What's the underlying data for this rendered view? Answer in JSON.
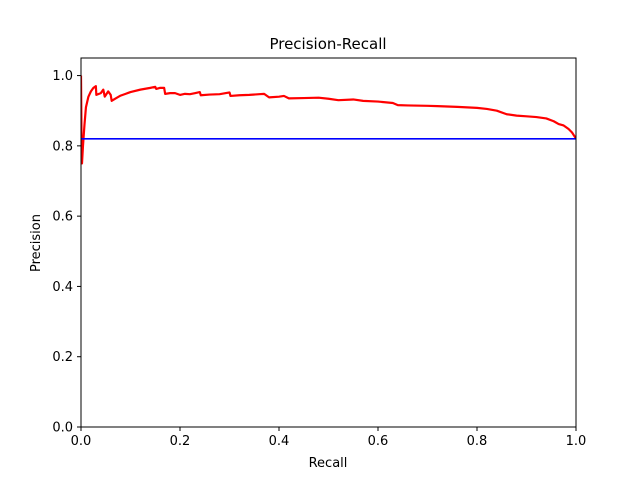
{
  "chart_data": {
    "type": "line",
    "title": "Precision-Recall",
    "xlabel": "Recall",
    "ylabel": "Precision",
    "xlim": [
      0.0,
      1.0
    ],
    "ylim": [
      0.0,
      1.05
    ],
    "x_ticks": [
      "0.0",
      "0.2",
      "0.4",
      "0.6",
      "0.8",
      "1.0"
    ],
    "y_ticks": [
      "0.0",
      "0.2",
      "0.4",
      "0.6",
      "0.8",
      "1.0"
    ],
    "grid": false,
    "legend": "none",
    "series": [
      {
        "color": "#ff0000",
        "points": [
          [
            0.0,
            1.0
          ],
          [
            0.001,
            0.83
          ],
          [
            0.002,
            0.75
          ],
          [
            0.004,
            0.8
          ],
          [
            0.007,
            0.86
          ],
          [
            0.01,
            0.91
          ],
          [
            0.015,
            0.94
          ],
          [
            0.02,
            0.955
          ],
          [
            0.025,
            0.965
          ],
          [
            0.03,
            0.97
          ],
          [
            0.031,
            0.945
          ],
          [
            0.04,
            0.95
          ],
          [
            0.045,
            0.96
          ],
          [
            0.048,
            0.94
          ],
          [
            0.055,
            0.955
          ],
          [
            0.06,
            0.945
          ],
          [
            0.062,
            0.928
          ],
          [
            0.07,
            0.935
          ],
          [
            0.08,
            0.943
          ],
          [
            0.09,
            0.948
          ],
          [
            0.1,
            0.953
          ],
          [
            0.12,
            0.96
          ],
          [
            0.14,
            0.965
          ],
          [
            0.15,
            0.968
          ],
          [
            0.152,
            0.962
          ],
          [
            0.16,
            0.965
          ],
          [
            0.168,
            0.965
          ],
          [
            0.17,
            0.948
          ],
          [
            0.18,
            0.95
          ],
          [
            0.19,
            0.95
          ],
          [
            0.2,
            0.945
          ],
          [
            0.21,
            0.948
          ],
          [
            0.22,
            0.947
          ],
          [
            0.23,
            0.95
          ],
          [
            0.24,
            0.953
          ],
          [
            0.242,
            0.944
          ],
          [
            0.26,
            0.946
          ],
          [
            0.28,
            0.947
          ],
          [
            0.3,
            0.952
          ],
          [
            0.302,
            0.942
          ],
          [
            0.32,
            0.944
          ],
          [
            0.34,
            0.945
          ],
          [
            0.36,
            0.947
          ],
          [
            0.37,
            0.948
          ],
          [
            0.38,
            0.938
          ],
          [
            0.4,
            0.94
          ],
          [
            0.41,
            0.942
          ],
          [
            0.42,
            0.935
          ],
          [
            0.45,
            0.936
          ],
          [
            0.48,
            0.937
          ],
          [
            0.5,
            0.934
          ],
          [
            0.52,
            0.93
          ],
          [
            0.55,
            0.932
          ],
          [
            0.57,
            0.928
          ],
          [
            0.6,
            0.926
          ],
          [
            0.63,
            0.922
          ],
          [
            0.64,
            0.916
          ],
          [
            0.66,
            0.915
          ],
          [
            0.7,
            0.914
          ],
          [
            0.72,
            0.913
          ],
          [
            0.76,
            0.911
          ],
          [
            0.8,
            0.908
          ],
          [
            0.82,
            0.905
          ],
          [
            0.84,
            0.9
          ],
          [
            0.86,
            0.89
          ],
          [
            0.88,
            0.886
          ],
          [
            0.9,
            0.884
          ],
          [
            0.92,
            0.882
          ],
          [
            0.94,
            0.878
          ],
          [
            0.955,
            0.87
          ],
          [
            0.965,
            0.862
          ],
          [
            0.975,
            0.858
          ],
          [
            0.985,
            0.848
          ],
          [
            0.992,
            0.838
          ],
          [
            0.998,
            0.825
          ],
          [
            1.0,
            0.82
          ]
        ]
      },
      {
        "color": "#0000ff",
        "points": [
          [
            0.0,
            0.82
          ],
          [
            1.0,
            0.82
          ]
        ]
      }
    ]
  }
}
